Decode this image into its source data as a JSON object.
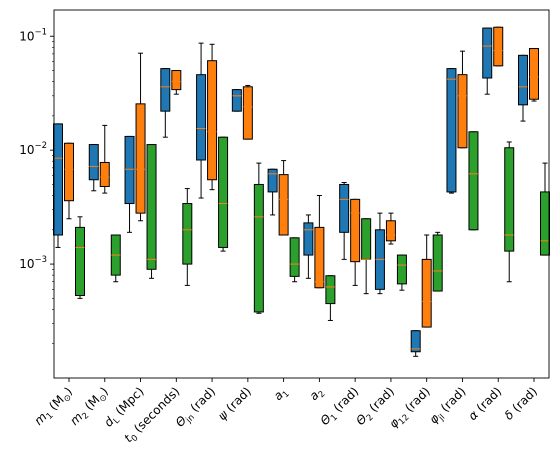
{
  "chart_data": {
    "type": "box",
    "y_scale": "log",
    "ylim": [
      0.0001,
      0.17
    ],
    "y_ticks": [
      {
        "value": 0.001,
        "base": "10",
        "exp": "−3"
      },
      {
        "value": 0.01,
        "base": "10",
        "exp": "−2"
      },
      {
        "value": 0.1,
        "base": "10",
        "exp": "−1"
      }
    ],
    "categories": [
      {
        "main": "m",
        "sub": "1",
        "rest": " (M",
        "rest_sub": "⊙",
        "tail": ")"
      },
      {
        "main": "m",
        "sub": "2",
        "rest": " (M",
        "rest_sub": "⊙",
        "tail": ")"
      },
      {
        "main": "d",
        "sub": "L",
        "rest": " (Mpc)",
        "rest_sub": "",
        "tail": ""
      },
      {
        "main": "t",
        "sub": "0",
        "rest": " (seconds)",
        "rest_sub": "",
        "tail": ""
      },
      {
        "main": "Θ",
        "sub": "jn",
        "rest": " (rad)",
        "rest_sub": "",
        "tail": ""
      },
      {
        "main": "ψ",
        "sub": "",
        "rest": " (rad)",
        "rest_sub": "",
        "tail": ""
      },
      {
        "main": "a",
        "sub": "1",
        "rest": "",
        "rest_sub": "",
        "tail": ""
      },
      {
        "main": "a",
        "sub": "2",
        "rest": "",
        "rest_sub": "",
        "tail": ""
      },
      {
        "main": "Θ",
        "sub": "1",
        "rest": " (rad)",
        "rest_sub": "",
        "tail": ""
      },
      {
        "main": "Θ",
        "sub": "2",
        "rest": " (rad)",
        "rest_sub": "",
        "tail": ""
      },
      {
        "main": "φ",
        "sub": "12",
        "rest": " (rad)",
        "rest_sub": "",
        "tail": ""
      },
      {
        "main": "φ",
        "sub": "jl",
        "rest": " (rad)",
        "rest_sub": "",
        "tail": ""
      },
      {
        "main": "α",
        "sub": "",
        "rest": " (rad)",
        "rest_sub": "",
        "tail": ""
      },
      {
        "main": "δ",
        "sub": "",
        "rest": " (rad)",
        "rest_sub": "",
        "tail": ""
      }
    ],
    "series": [
      {
        "color": "#1f77b4",
        "boxes": [
          {
            "whislo": 0.0014,
            "q1": 0.0018,
            "med": 0.0085,
            "q3": 0.017,
            "whishi": 0.017
          },
          {
            "whislo": 0.0044,
            "q1": 0.0055,
            "med": 0.0072,
            "q3": 0.0112,
            "whishi": 0.0112
          },
          {
            "whislo": 0.0019,
            "q1": 0.0034,
            "med": 0.0068,
            "q3": 0.0132,
            "whishi": 0.0132
          },
          {
            "whislo": 0.013,
            "q1": 0.022,
            "med": 0.036,
            "q3": 0.052,
            "whishi": 0.052
          },
          {
            "whislo": 0.0038,
            "q1": 0.0082,
            "med": 0.0155,
            "q3": 0.046,
            "whishi": 0.087
          },
          {
            "whislo": 0.022,
            "q1": 0.022,
            "med": 0.03,
            "q3": 0.034,
            "whishi": 0.034
          },
          {
            "whislo": 0.0027,
            "q1": 0.0043,
            "med": 0.0062,
            "q3": 0.0068,
            "whishi": 0.0068
          },
          {
            "whislo": 0.00075,
            "q1": 0.0012,
            "med": 0.002,
            "q3": 0.0023,
            "whishi": 0.0027
          },
          {
            "whislo": 0.0011,
            "q1": 0.0019,
            "med": 0.0037,
            "q3": 0.005,
            "whishi": 0.0052
          },
          {
            "whislo": 0.00055,
            "q1": 0.0006,
            "med": 0.0011,
            "q3": 0.002,
            "whishi": 0.0028
          },
          {
            "whislo": 0.000155,
            "q1": 0.00017,
            "med": 0.00018,
            "q3": 0.00026,
            "whishi": 0.00026
          },
          {
            "whislo": 0.0042,
            "q1": 0.0043,
            "med": 0.042,
            "q3": 0.052,
            "whishi": 0.052
          },
          {
            "whislo": 0.031,
            "q1": 0.043,
            "med": 0.082,
            "q3": 0.118,
            "whishi": 0.118
          },
          {
            "whislo": 0.018,
            "q1": 0.025,
            "med": 0.036,
            "q3": 0.068,
            "whishi": 0.068
          }
        ]
      },
      {
        "color": "#ff7f0e",
        "boxes": [
          {
            "whislo": 0.0025,
            "q1": 0.0036,
            "med": 0.0068,
            "q3": 0.0115,
            "whishi": 0.0115
          },
          {
            "whislo": 0.0042,
            "q1": 0.0048,
            "med": 0.0058,
            "q3": 0.0078,
            "whishi": 0.0165
          },
          {
            "whislo": 0.0024,
            "q1": 0.0028,
            "med": 0.0068,
            "q3": 0.0255,
            "whishi": 0.071
          },
          {
            "whislo": 0.031,
            "q1": 0.034,
            "med": 0.04,
            "q3": 0.05,
            "whishi": 0.05
          },
          {
            "whislo": 0.0045,
            "q1": 0.0055,
            "med": 0.0145,
            "q3": 0.061,
            "whishi": 0.085
          },
          {
            "whislo": 0.0125,
            "q1": 0.0125,
            "med": 0.024,
            "q3": 0.036,
            "whishi": 0.037
          },
          {
            "whislo": 0.0018,
            "q1": 0.0018,
            "med": 0.0037,
            "q3": 0.0061,
            "whishi": 0.0081
          },
          {
            "whislo": 0.00062,
            "q1": 0.00062,
            "med": 0.0007,
            "q3": 0.0021,
            "whishi": 0.004
          },
          {
            "whislo": 0.00065,
            "q1": 0.00105,
            "med": 0.0028,
            "q3": 0.0037,
            "whishi": 0.0037
          },
          {
            "whislo": 0.0015,
            "q1": 0.0016,
            "med": 0.0018,
            "q3": 0.0024,
            "whishi": 0.0028
          },
          {
            "whislo": 0.00028,
            "q1": 0.00028,
            "med": 0.00047,
            "q3": 0.0011,
            "whishi": 0.0018
          },
          {
            "whislo": 0.0105,
            "q1": 0.0105,
            "med": 0.03,
            "q3": 0.046,
            "whishi": 0.074
          },
          {
            "whislo": 0.055,
            "q1": 0.055,
            "med": 0.075,
            "q3": 0.12,
            "whishi": 0.12
          },
          {
            "whislo": 0.027,
            "q1": 0.028,
            "med": 0.044,
            "q3": 0.078,
            "whishi": 0.078
          }
        ]
      },
      {
        "color": "#2ca02c",
        "boxes": [
          {
            "whislo": 0.0005,
            "q1": 0.00053,
            "med": 0.0014,
            "q3": 0.0021,
            "whishi": 0.0026
          },
          {
            "whislo": 0.0007,
            "q1": 0.0008,
            "med": 0.0012,
            "q3": 0.0018,
            "whishi": 0.0018
          },
          {
            "whislo": 0.00075,
            "q1": 0.0009,
            "med": 0.0011,
            "q3": 0.0112,
            "whishi": 0.0112
          },
          {
            "whislo": 0.00065,
            "q1": 0.001,
            "med": 0.002,
            "q3": 0.0034,
            "whishi": 0.0046
          },
          {
            "whislo": 0.0013,
            "q1": 0.0014,
            "med": 0.0034,
            "q3": 0.013,
            "whishi": 0.013
          },
          {
            "whislo": 0.00037,
            "q1": 0.00038,
            "med": 0.0026,
            "q3": 0.005,
            "whishi": 0.0077
          },
          {
            "whislo": 0.0007,
            "q1": 0.00078,
            "med": 0.001,
            "q3": 0.0017,
            "whishi": 0.0017
          },
          {
            "whislo": 0.00032,
            "q1": 0.00045,
            "med": 0.00063,
            "q3": 0.00079,
            "whishi": 0.00079
          },
          {
            "whislo": 0.00055,
            "q1": 0.0011,
            "med": 0.0011,
            "q3": 0.0025,
            "whishi": 0.0025
          },
          {
            "whislo": 0.00059,
            "q1": 0.00067,
            "med": 0.00098,
            "q3": 0.0012,
            "whishi": 0.0012
          },
          {
            "whislo": 0.00058,
            "q1": 0.00058,
            "med": 0.00087,
            "q3": 0.0018,
            "whishi": 0.0019
          },
          {
            "whislo": 0.002,
            "q1": 0.002,
            "med": 0.0062,
            "q3": 0.0145,
            "whishi": 0.0145
          },
          {
            "whislo": 0.0007,
            "q1": 0.0013,
            "med": 0.0018,
            "q3": 0.0105,
            "whishi": 0.0118
          },
          {
            "whislo": 0.0012,
            "q1": 0.0012,
            "med": 0.0016,
            "q3": 0.0043,
            "whishi": 0.0077
          }
        ]
      }
    ]
  }
}
